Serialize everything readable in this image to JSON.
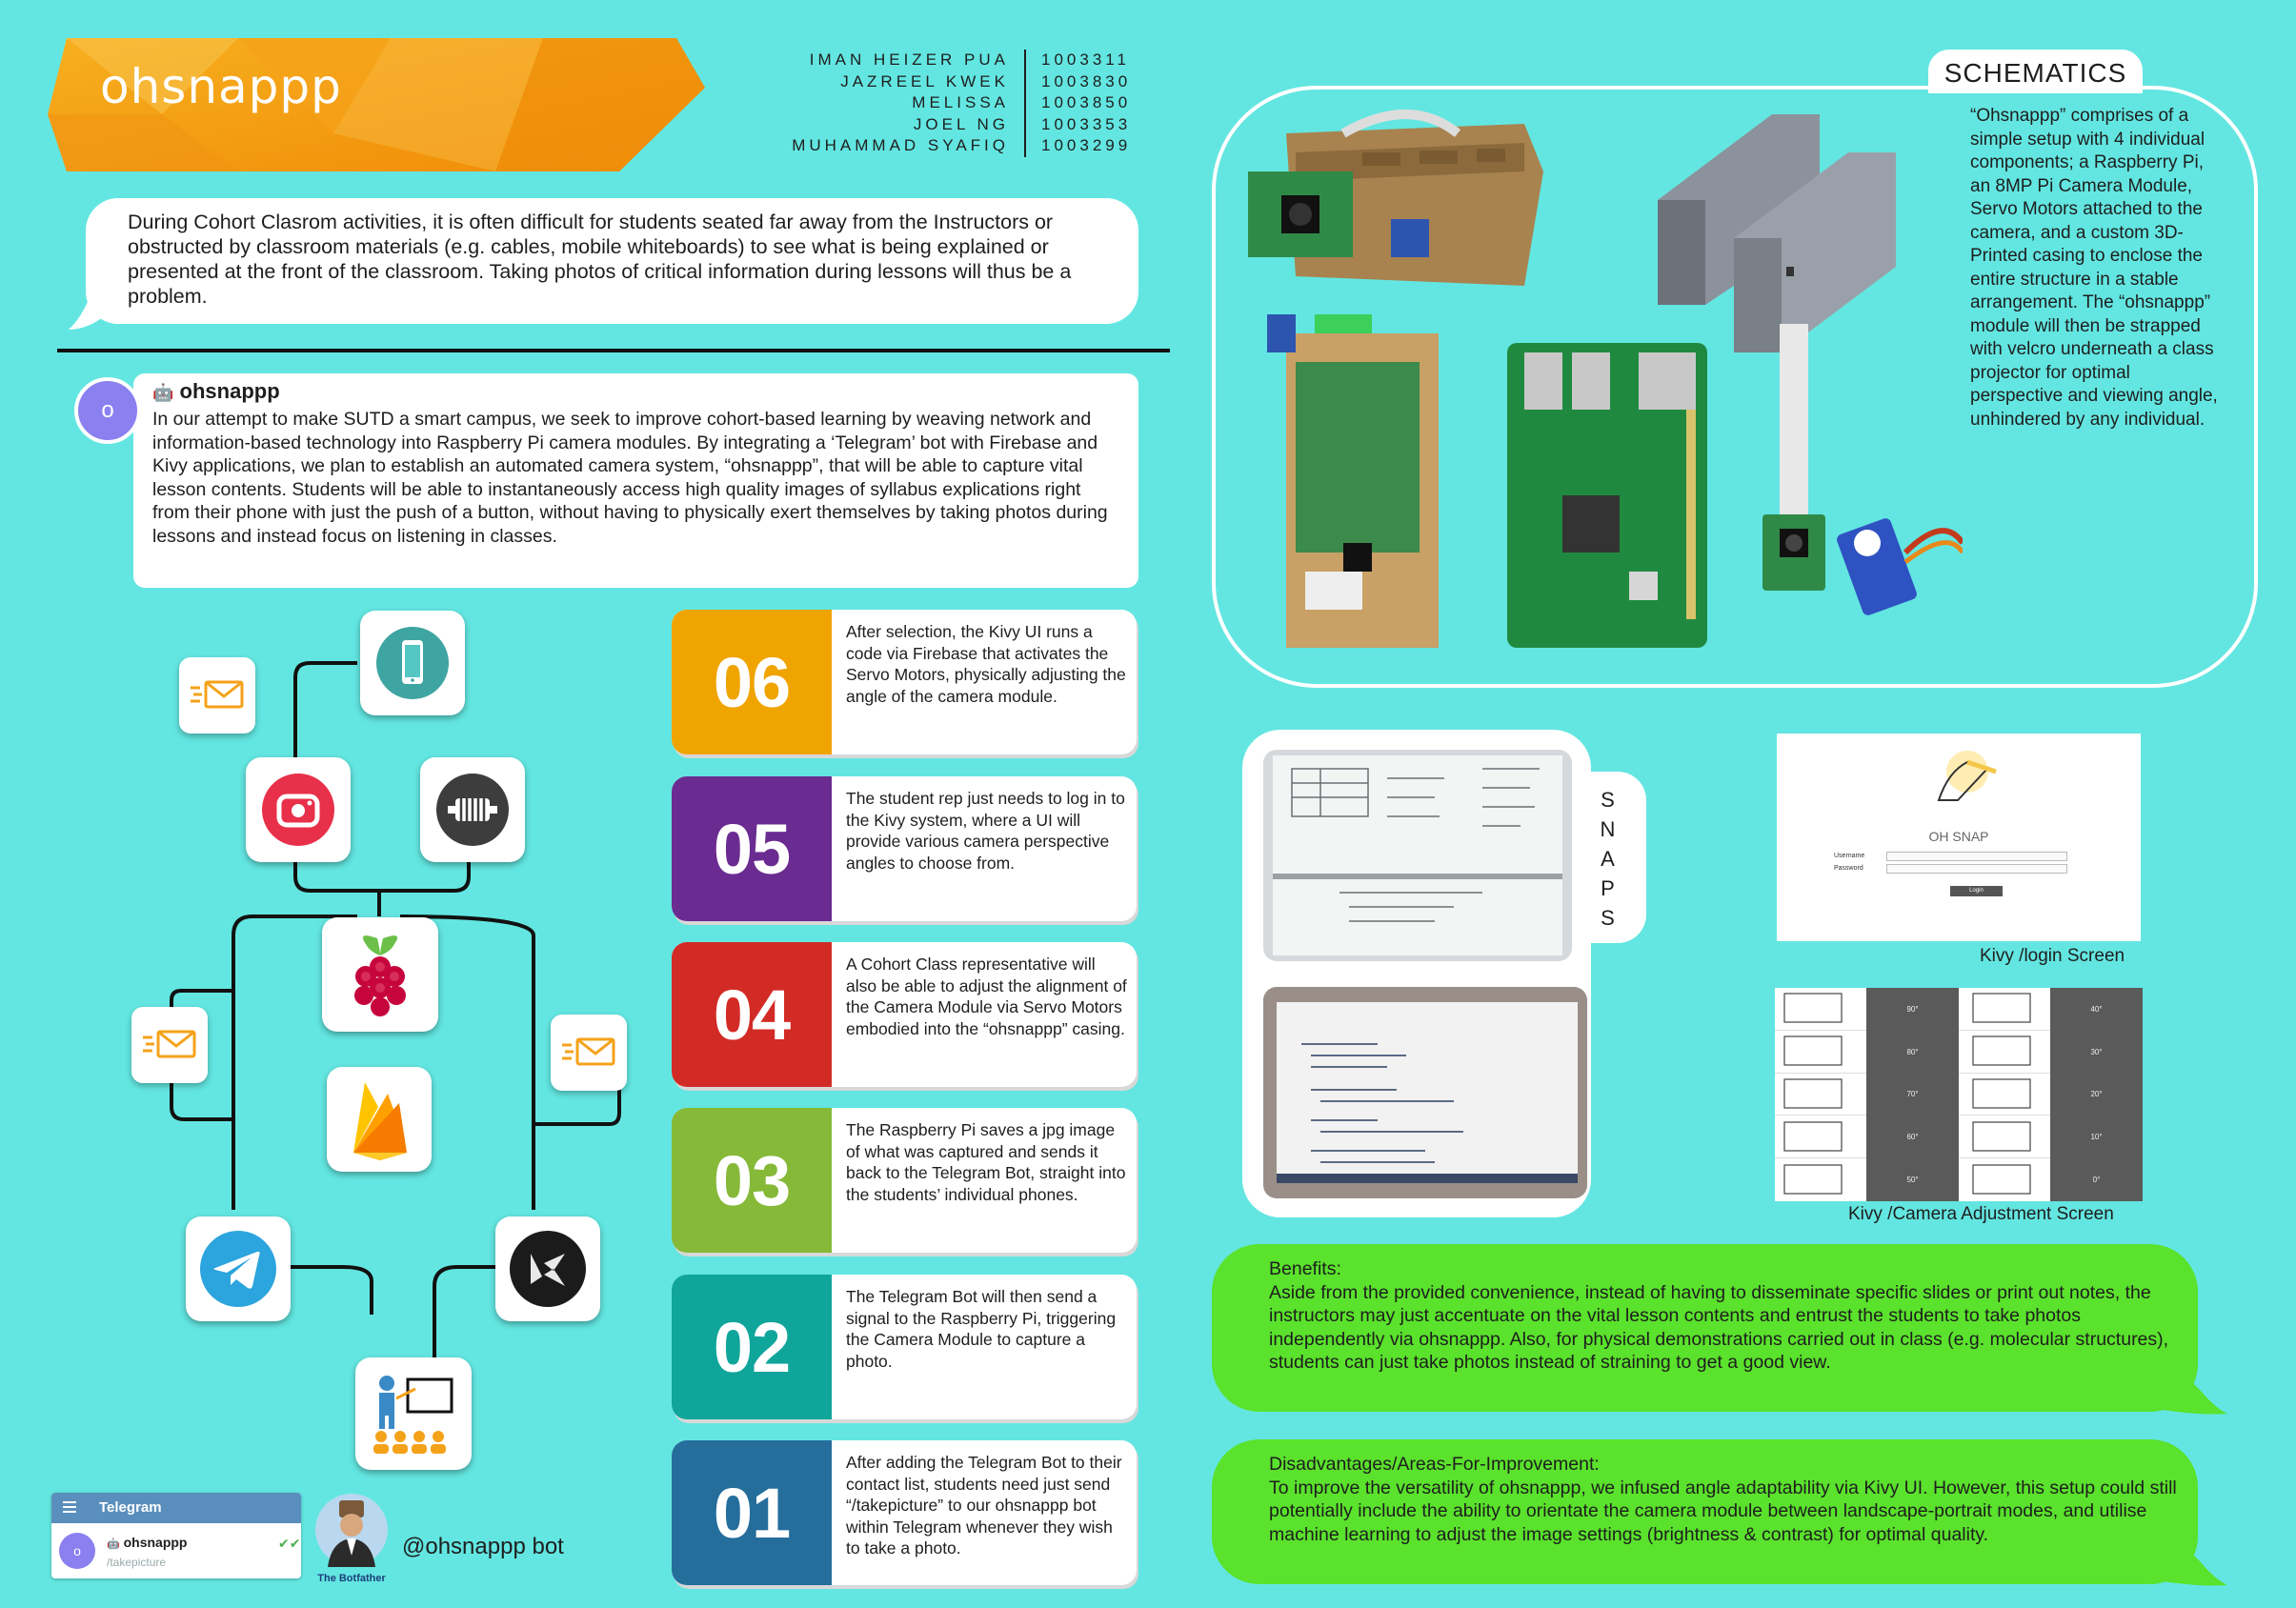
{
  "banner": {
    "title": "ohsnappp"
  },
  "team": [
    {
      "name": "IMAN HEIZER PUA",
      "id": "1003311"
    },
    {
      "name": "JAZREEL KWEK",
      "id": "1003830"
    },
    {
      "name": "MELISSA",
      "id": "1003850"
    },
    {
      "name": "JOEL NG",
      "id": "1003353"
    },
    {
      "name": "MUHAMMAD SYAFIQ",
      "id": "1003299"
    }
  ],
  "intro": "During Cohort Clasrom activities, it is often difficult for students seated far away from the Instructors or obstructed by classroom materials (e.g. cables, mobile whiteboards) to see what is being explained or presented at the front of the classroom. Taking photos of critical information during lessons will thus be a problem.",
  "post": {
    "avatar_letter": "o",
    "title": "ohsnappp",
    "body": "In our attempt to make SUTD a smart campus, we seek to improve cohort-based learning by weaving network and information-based technology into Raspberry Pi camera modules. By integrating a ‘Telegram’ bot with Firebase and Kivy applications, we plan to establish an automated camera system, “ohsnappp”, that will be able to capture vital lesson contents. Students will be able to instantaneously access high quality images of syllabus explications right from their phone with just the push of a button, without having to physically exert themselves by taking photos during lessons and instead focus on listening in classes."
  },
  "steps": [
    {
      "num": "06",
      "color": "#f0a400",
      "text": "After selection, the Kivy UI runs a code via Firebase that activates the Servo Motors, physically adjusting the angle of the camera module."
    },
    {
      "num": "05",
      "color": "#6a2c91",
      "text": "The student rep just needs to log in to the Kivy system, where a UI will provide various camera perspective angles to choose from."
    },
    {
      "num": "04",
      "color": "#d22b26",
      "text": "A Cohort Class representative will also be able to adjust the alignment of the Camera Module via Servo Motors embodied into the “ohsnappp” casing."
    },
    {
      "num": "03",
      "color": "#86b938",
      "text": "The Raspberry Pi saves a jpg image of what was captured and sends it back to the Telegram Bot, straight into the students’ individual phones."
    },
    {
      "num": "02",
      "color": "#10a59a",
      "text": "The Telegram Bot will then send a signal to the Raspberry Pi, triggering the Camera Module to capture a photo."
    },
    {
      "num": "01",
      "color": "#256e9c",
      "text": "After adding the Telegram Bot to their contact list, students need just send “/takepicture” to our ohsnappp bot within Telegram whenever they wish to take a photo."
    }
  ],
  "telegram": {
    "app_title": "Telegram",
    "avatar_letter": "o",
    "chat_name": "ohsnappp",
    "last_message": "/takepicture",
    "botfather_label": "The Botfather",
    "bot_handle": "@ohsnappp bot"
  },
  "schematics": {
    "tab": "SCHEMATICS",
    "text": "“Ohsnappp” comprises of a simple setup with 4 individual components; a Raspberry Pi, an 8MP Pi Camera Module, Servo Motors attached to the camera, and a custom 3D- Printed casing to enclose the entire structure in a stable arrangement. The “ohsnappp” module will then be strapped with velcro underneath a class projector for optimal perspective and viewing angle, unhindered by any individual."
  },
  "snaps": {
    "letters": [
      "S",
      "N",
      "A",
      "P",
      "S"
    ]
  },
  "kivy": {
    "login_caption": "Kivy /login Screen",
    "login_logo": "OH SNAP",
    "username_label": "Username",
    "password_label": "Password",
    "login_button": "Login",
    "camera_caption": "Kivy /Camera Adjustment  Screen",
    "left_angles": [
      "90°",
      "80°",
      "70°",
      "60°",
      "50°"
    ],
    "right_angles": [
      "40°",
      "30°",
      "20°",
      "10°",
      "0°"
    ]
  },
  "benefits": {
    "heading": "Benefits:",
    "text": "Aside from the provided convenience, instead of having to disseminate specific slides or print out notes, the instructors may just accentuate on the vital lesson contents and entrust the students to take photos independently via ohsnappp. Also, for physical demonstrations carried out in class (e.g. molecular structures), students can just take photos instead of straining to get a good view."
  },
  "disadvantages": {
    "heading": "Disadvantages/Areas-For-Improvement:",
    "text": "To improve the versatility of ohsnappp, we infused angle adaptability via Kivy UI. However, this setup could still potentially include the ability to orientate the camera module between landscape-portrait modes, and utilise machine learning to adjust the image settings (brightness & contrast) for optimal quality."
  }
}
